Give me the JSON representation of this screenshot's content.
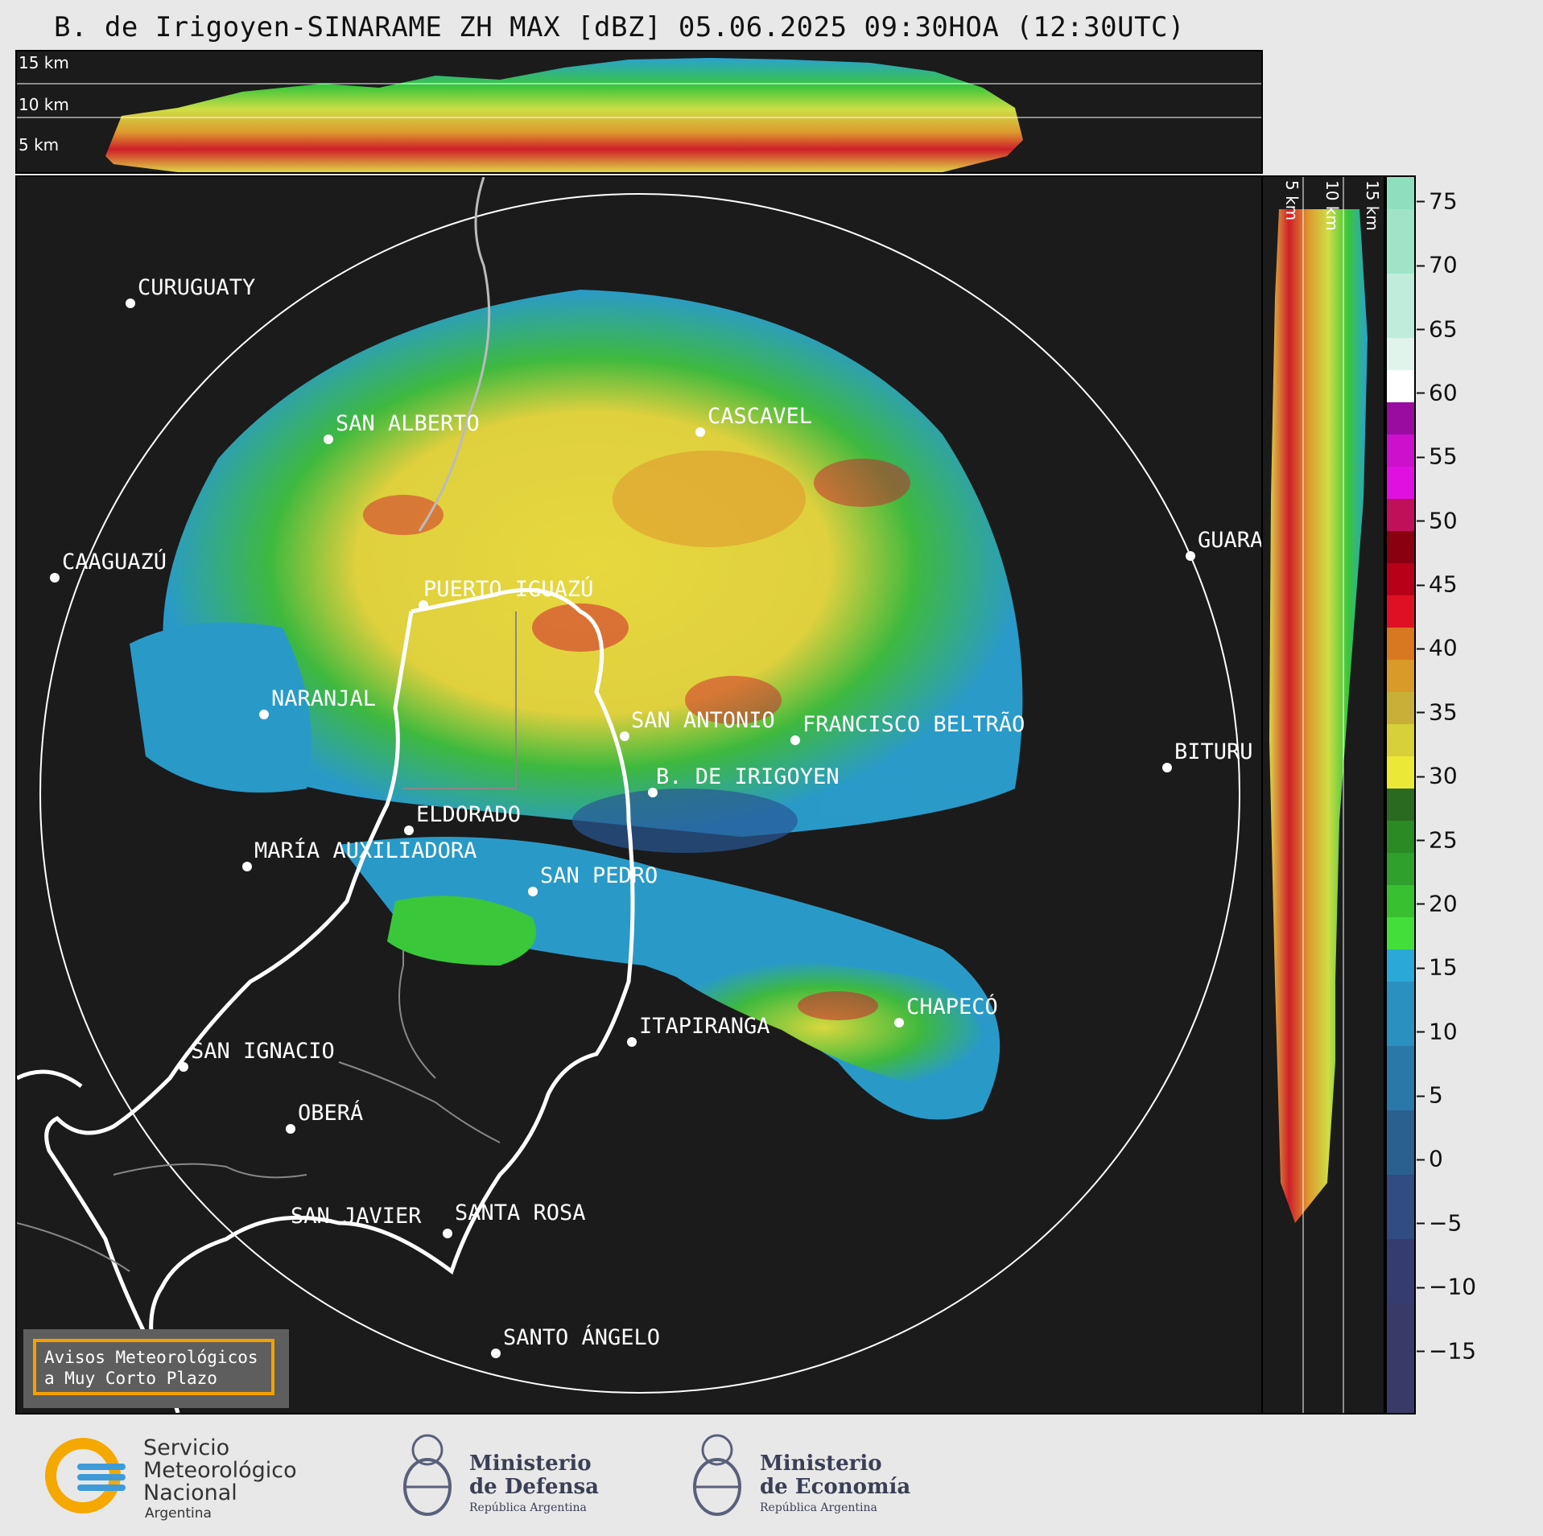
{
  "title": "B. de Irigoyen-SINARAME ZH MAX [dBZ] 05.06.2025 09:30HOA (12:30UTC)",
  "top_panel": {
    "height_labels": [
      "15 km",
      "10 km",
      "5 km"
    ]
  },
  "side_panel": {
    "height_labels": [
      "5 km",
      "10 km",
      "15 km"
    ]
  },
  "cities": [
    {
      "id": "curuguaty",
      "label": "CURUGUATY"
    },
    {
      "id": "san-alberto",
      "label": "SAN ALBERTO"
    },
    {
      "id": "cascavel",
      "label": "CASCAVEL"
    },
    {
      "id": "caaguazu",
      "label": "CAAGUAZÚ"
    },
    {
      "id": "puerto-iguazu",
      "label": "PUERTO IGUAZÚ"
    },
    {
      "id": "guara",
      "label": "GUARA"
    },
    {
      "id": "naranjal",
      "label": "NARANJAL"
    },
    {
      "id": "san-antonio",
      "label": "SAN ANTONIO"
    },
    {
      "id": "francisco-beltrao",
      "label": "FRANCISCO BELTRÃO"
    },
    {
      "id": "bituru",
      "label": "BITURU"
    },
    {
      "id": "b-de-irigoyen",
      "label": "B. DE IRIGOYEN"
    },
    {
      "id": "eldorado",
      "label": "ELDORADO"
    },
    {
      "id": "maria-auxiliadora",
      "label": "MARÍA AUXILIADORA"
    },
    {
      "id": "san-pedro",
      "label": "SAN PEDRO"
    },
    {
      "id": "chapeco",
      "label": "CHAPECÓ"
    },
    {
      "id": "itapiranga",
      "label": "ITAPIRANGA"
    },
    {
      "id": "san-ignacio",
      "label": "SAN IGNACIO"
    },
    {
      "id": "obera",
      "label": "OBERÁ"
    },
    {
      "id": "san-javier",
      "label": "SAN JAVIER"
    },
    {
      "id": "santa-rosa",
      "label": "SANTA ROSA"
    },
    {
      "id": "santo-angelo",
      "label": "SANTO ÁNGELO"
    }
  ],
  "warning_box": {
    "line1": "Avisos Meteorológicos",
    "line2": "a Muy Corto Plazo",
    "border_color": "#f5a000"
  },
  "colorbar": {
    "unit": "dBZ",
    "range": [
      -20,
      77
    ],
    "ticks": [
      "75",
      "70",
      "65",
      "60",
      "55",
      "50",
      "45",
      "40",
      "35",
      "30",
      "25",
      "20",
      "15",
      "10",
      "5",
      "0",
      "−5",
      "−10",
      "−15"
    ]
  },
  "footer": {
    "smn": {
      "line1": "Servicio",
      "line2": "Meteorológico",
      "line3": "Nacional",
      "line4": "Argentina"
    },
    "defensa": {
      "line1": "Ministerio",
      "line2": "de Defensa",
      "line3": "República Argentina"
    },
    "economia": {
      "line1": "Ministerio",
      "line2": "de Economía",
      "line3": "República Argentina"
    }
  }
}
